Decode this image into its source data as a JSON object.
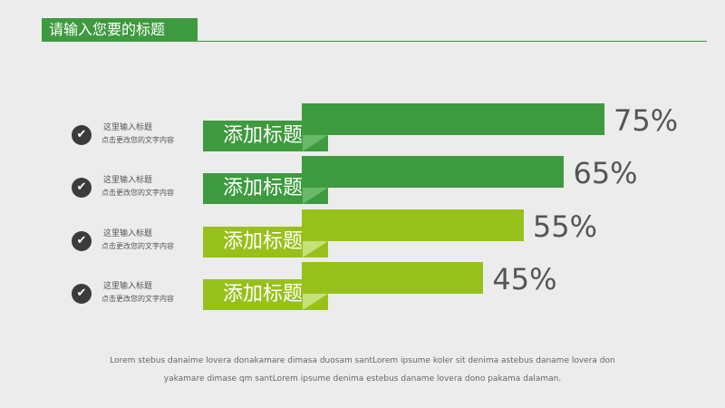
{
  "header": {
    "title": "请输入您要的标题"
  },
  "chart_data": {
    "type": "bar",
    "orientation": "horizontal",
    "categories": [
      "添加标题",
      "添加标题",
      "添加标题",
      "添加标题"
    ],
    "values": [
      75,
      65,
      55,
      45
    ],
    "value_labels": [
      "75%",
      "65%",
      "55%",
      "45%"
    ],
    "unit": "%",
    "colors": [
      "#3e9a3e",
      "#3e9a3e",
      "#97c11a",
      "#97c11a"
    ],
    "fold_colors": [
      "#6ab86a",
      "#6ab86a",
      "#c6e07a",
      "#c6e07a"
    ],
    "side_items": [
      {
        "title": "这里输入标题",
        "desc": "点击更改您的文字内容"
      },
      {
        "title": "这里输入标题",
        "desc": "点击更改您的文字内容"
      },
      {
        "title": "这里输入标题",
        "desc": "点击更改您的文字内容"
      },
      {
        "title": "这里输入标题",
        "desc": "点击更改您的文字内容"
      }
    ],
    "check_icon": "check-circle-icon"
  },
  "footer": {
    "line1": "Lorem stebus danaime lovera donakamare dimasa duosam santLorem ipsume koler sit denima astebus daname lovera don",
    "line2": "yakamare dimase qm santLorem ipsume denima estebus daname lovera dono pakama dalaman."
  }
}
